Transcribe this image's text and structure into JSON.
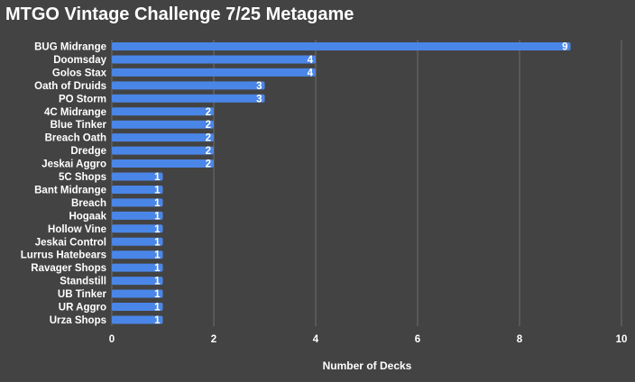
{
  "chart_data": {
    "type": "bar",
    "orientation": "horizontal",
    "title": "MTGO Vintage Challenge 7/25 Metagame",
    "xlabel": "Number of Decks",
    "ylabel": "",
    "xlim": [
      0,
      10
    ],
    "xticks": [
      "0",
      "2",
      "4",
      "6",
      "8",
      "10"
    ],
    "grid": true,
    "data_labels": true,
    "categories": [
      "BUG Midrange",
      "Doomsday",
      "Golos Stax",
      "Oath of Druids",
      "PO Storm",
      "4C Midrange",
      "Blue Tinker",
      "Breach Oath",
      "Dredge",
      "Jeskai Aggro",
      "5C Shops",
      "Bant Midrange",
      "Breach",
      "Hogaak",
      "Hollow Vine",
      "Jeskai Control",
      "Lurrus Hatebears",
      "Ravager Shops",
      "Standstill",
      "UB Tinker",
      "UR Aggro",
      "Urza Shops"
    ],
    "values": [
      9,
      4,
      4,
      3,
      3,
      2,
      2,
      2,
      2,
      2,
      1,
      1,
      1,
      1,
      1,
      1,
      1,
      1,
      1,
      1,
      1,
      1
    ],
    "colors": {
      "background": "#434343",
      "bar": "#4a86e8",
      "grid": "#6e6e6e",
      "text": "#ffffff"
    }
  }
}
